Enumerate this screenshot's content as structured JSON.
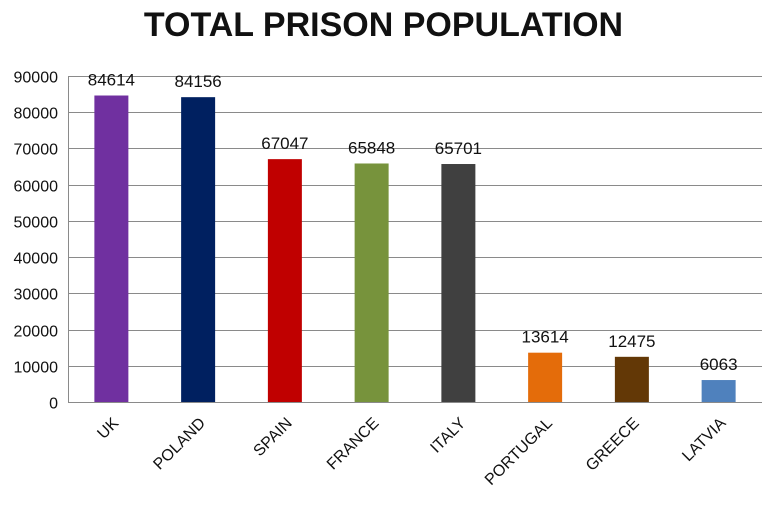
{
  "chart_data": {
    "type": "bar",
    "title": "TOTAL PRISON POPULATION",
    "xlabel": "",
    "ylabel": "",
    "categories": [
      "UK",
      "POLAND",
      "SPAIN",
      "FRANCE",
      "ITALY",
      "PORTUGAL",
      "GREECE",
      "LATVIA"
    ],
    "values": [
      84614,
      84156,
      67047,
      65848,
      65701,
      13614,
      12475,
      6063
    ],
    "colors": [
      "#7030A0",
      "#002060",
      "#C00000",
      "#77933C",
      "#404040",
      "#E46C0A",
      "#633806",
      "#4F81BD"
    ],
    "ylim": [
      0,
      90000
    ],
    "yticks": [
      "0",
      "10000",
      "20000",
      "30000",
      "40000",
      "50000",
      "60000",
      "70000",
      "80000",
      "90000"
    ],
    "grid": true,
    "legend": "none",
    "data_labels": true
  }
}
